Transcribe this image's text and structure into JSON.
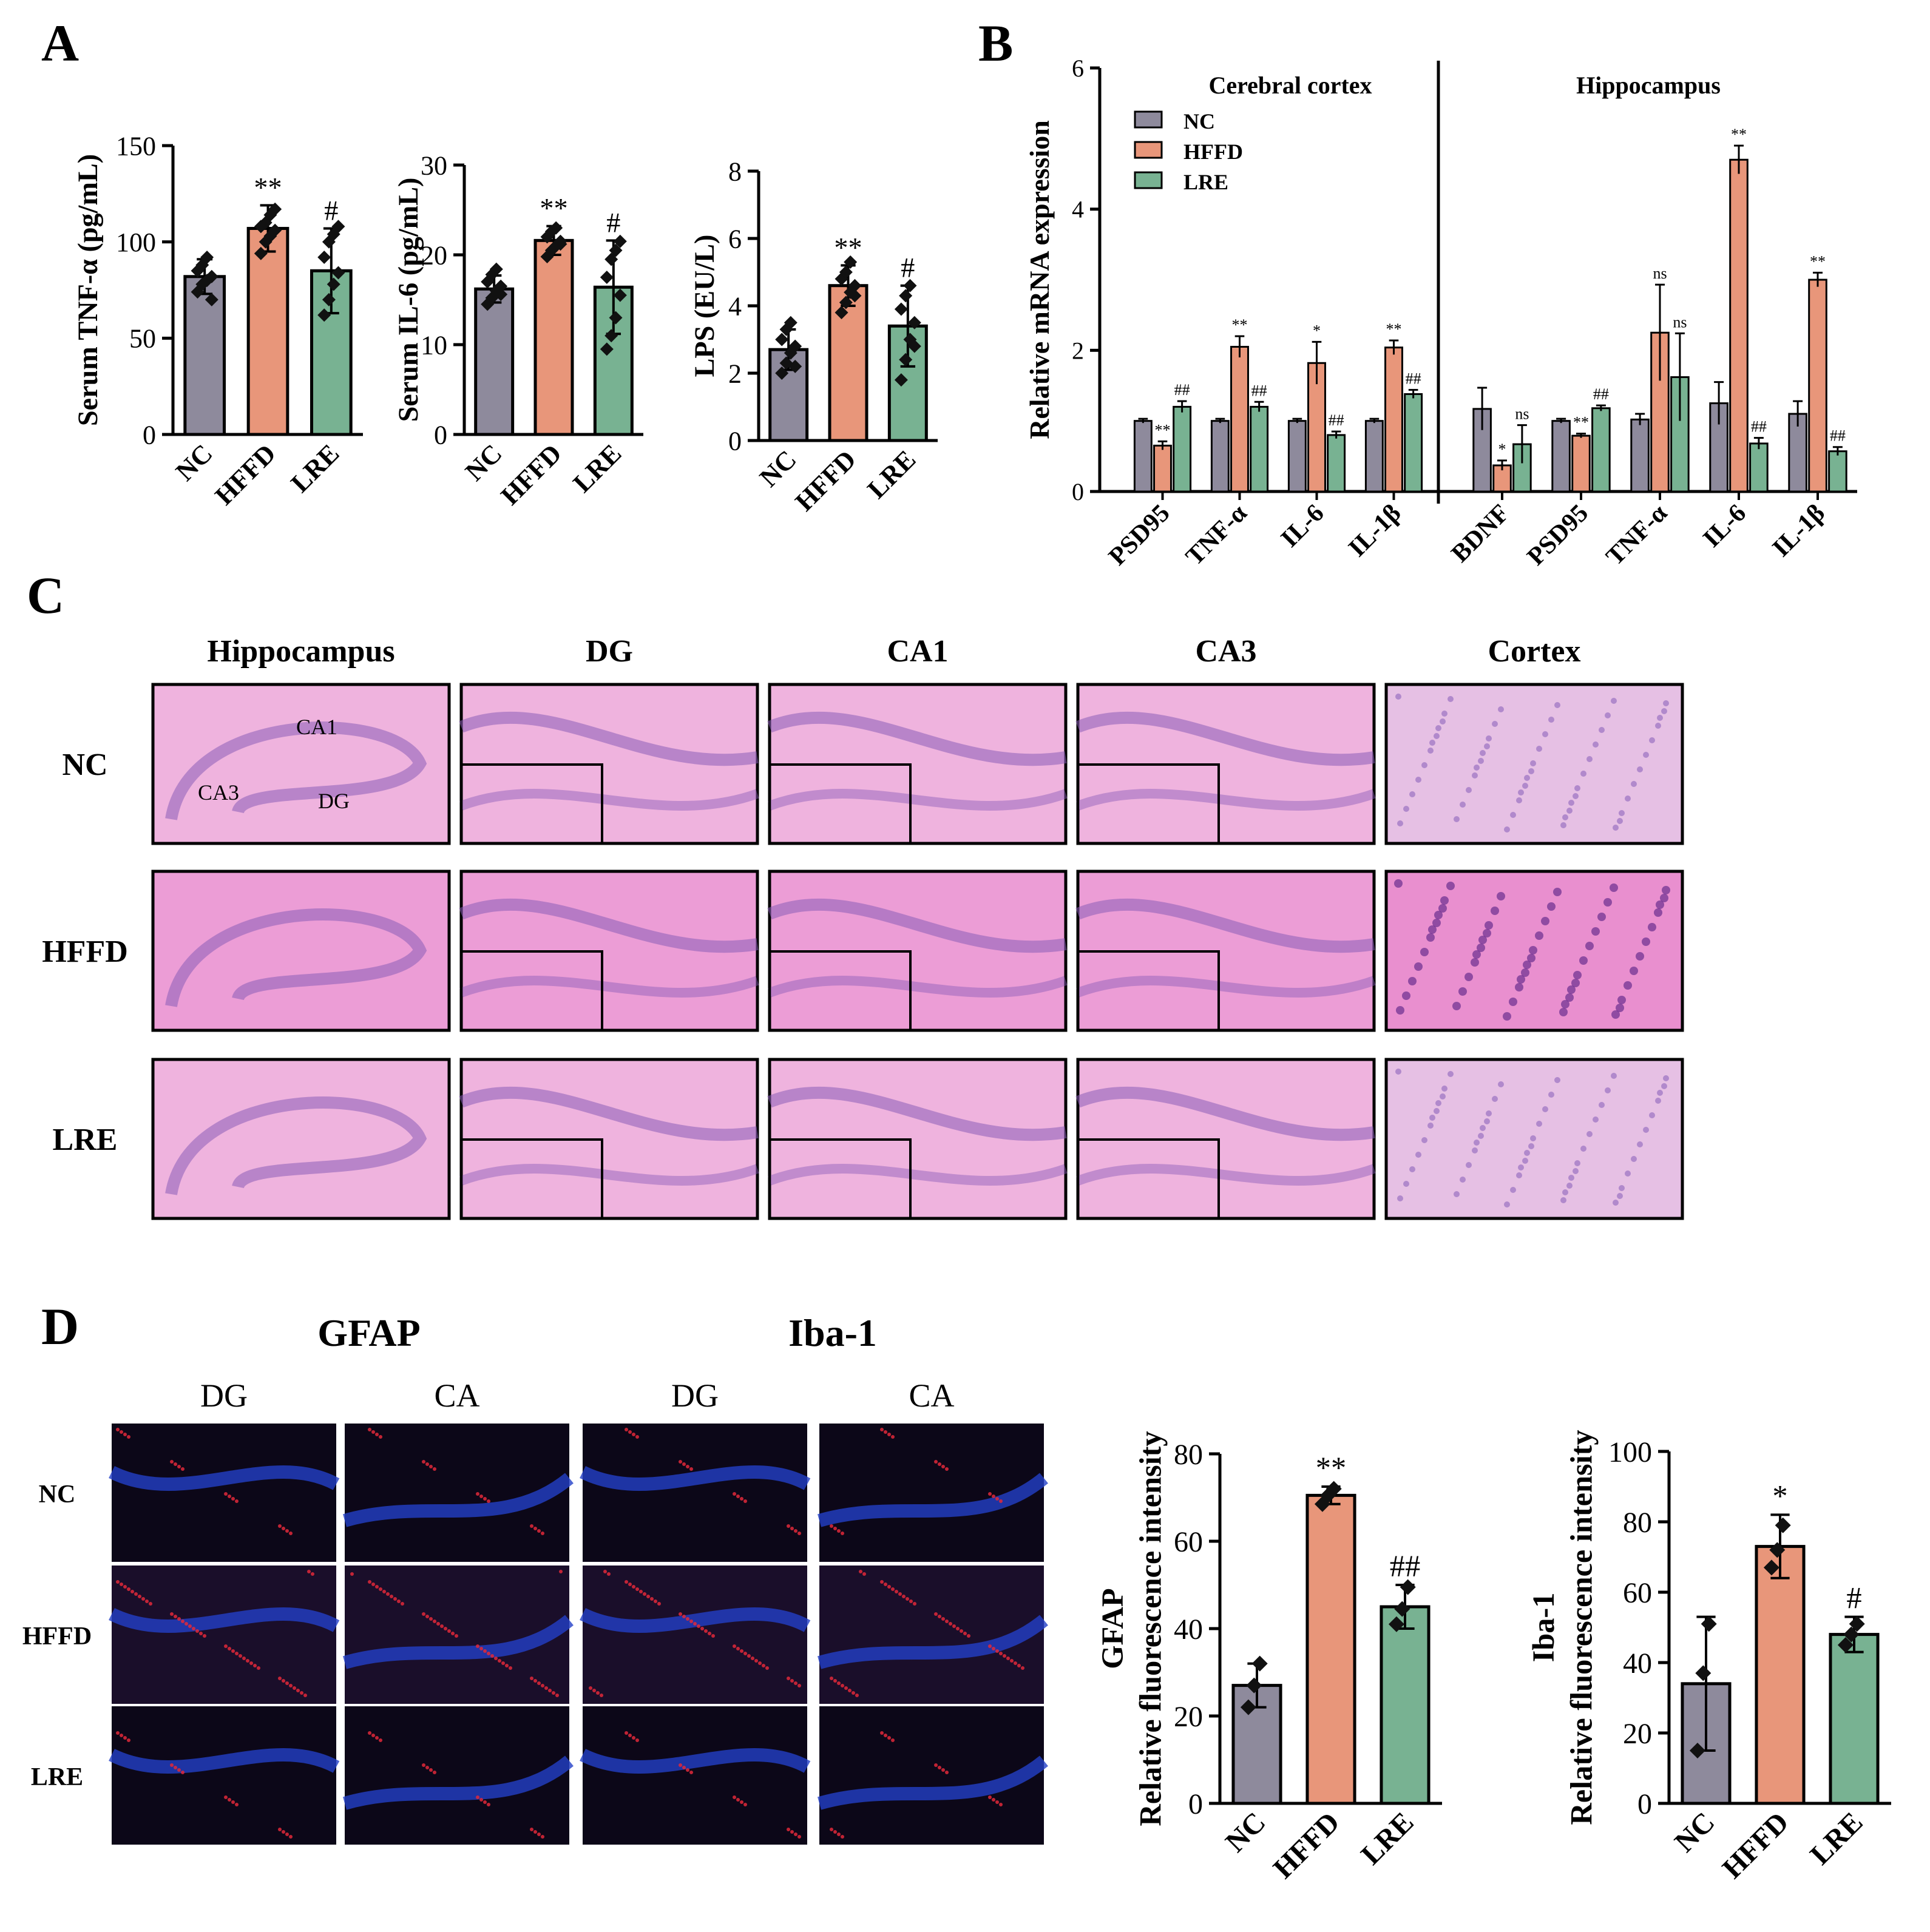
{
  "panels": {
    "A": "A",
    "B": "B",
    "C": "C",
    "D": "D"
  },
  "colors": {
    "NC": "#8e8a9c",
    "HFFD": "#e8967a",
    "LRE": "#78b292",
    "axis": "#000000",
    "dot": "#111111"
  },
  "groups": [
    "NC",
    "HFFD",
    "LRE"
  ],
  "chart_data": [
    {
      "id": "A-TNF",
      "type": "bar",
      "categories": [
        "NC",
        "HFFD",
        "LRE"
      ],
      "values": [
        82,
        107,
        85
      ],
      "errors": [
        9,
        12,
        22
      ],
      "points": [
        [
          74,
          78,
          80,
          82,
          85,
          88,
          92,
          70
        ],
        [
          94,
          100,
          103,
          106,
          108,
          110,
          114,
          117
        ],
        [
          62,
          70,
          78,
          84,
          92,
          100,
          104,
          108
        ]
      ],
      "annotations": [
        "",
        "**",
        "#"
      ],
      "ylabel": "Serum TNF-α (pg/mL)",
      "ylim": [
        0,
        150
      ],
      "yticks": [
        0,
        50,
        100,
        150
      ]
    },
    {
      "id": "A-IL6",
      "type": "bar",
      "categories": [
        "NC",
        "HFFD",
        "LRE"
      ],
      "values": [
        16.2,
        21.6,
        16.4
      ],
      "errors": [
        1.5,
        1.6,
        5.2
      ],
      "points": [
        [
          14.5,
          15.2,
          16,
          16.5,
          17,
          17.8,
          18.4,
          15.6
        ],
        [
          19.8,
          20.5,
          21,
          21.5,
          22,
          22.6,
          23,
          21.2
        ],
        [
          9.5,
          11,
          13,
          15.5,
          17.5,
          19.5,
          20.5,
          21.5
        ]
      ],
      "annotations": [
        "",
        "**",
        "#"
      ],
      "ylabel": "Serum IL-6 (pg/mL)",
      "ylim": [
        0,
        30
      ],
      "yticks": [
        0,
        10,
        20,
        30
      ]
    },
    {
      "id": "A-LPS",
      "type": "bar",
      "categories": [
        "NC",
        "HFFD",
        "LRE"
      ],
      "values": [
        2.7,
        4.6,
        3.4
      ],
      "errors": [
        0.6,
        0.6,
        1.2
      ],
      "points": [
        [
          2.0,
          2.3,
          2.6,
          2.8,
          3.0,
          3.3,
          3.5,
          2.2
        ],
        [
          3.8,
          4.1,
          4.4,
          4.6,
          4.8,
          5.0,
          5.3,
          4.3
        ],
        [
          1.8,
          2.4,
          3.0,
          3.5,
          3.9,
          4.3,
          4.6,
          2.8
        ]
      ],
      "annotations": [
        "",
        "**",
        "#"
      ],
      "ylabel": "LPS (EU/L)",
      "ylim": [
        0,
        8
      ],
      "yticks": [
        0,
        2,
        4,
        6,
        8
      ]
    },
    {
      "id": "B-mRNA",
      "type": "bar",
      "ylabel": "Relative mRNA expression",
      "ylim": [
        0,
        6
      ],
      "yticks": [
        0,
        2,
        4,
        6
      ],
      "legend": [
        "NC",
        "HFFD",
        "LRE"
      ],
      "sections": [
        {
          "title": "Cerebral cortex",
          "categories": [
            "PSD95",
            "TNF-α",
            "IL-6",
            "IL-1β"
          ],
          "series": [
            {
              "name": "NC",
              "values": [
                1.0,
                1.0,
                1.0,
                1.0
              ],
              "errors": [
                0.03,
                0.03,
                0.03,
                0.03
              ],
              "annotations": [
                "",
                "",
                "",
                ""
              ]
            },
            {
              "name": "HFFD",
              "values": [
                0.65,
                2.05,
                1.82,
                2.04
              ],
              "errors": [
                0.06,
                0.15,
                0.3,
                0.1
              ],
              "annotations": [
                "**",
                "**",
                "*",
                "**"
              ]
            },
            {
              "name": "LRE",
              "values": [
                1.2,
                1.2,
                0.8,
                1.38
              ],
              "errors": [
                0.08,
                0.07,
                0.05,
                0.06
              ],
              "annotations": [
                "##",
                "##",
                "##",
                "##"
              ]
            }
          ]
        },
        {
          "title": "Hippocampus",
          "categories": [
            "BDNF",
            "PSD95",
            "TNF-α",
            "IL-6",
            "IL-1β"
          ],
          "series": [
            {
              "name": "NC",
              "values": [
                1.17,
                1.0,
                1.02,
                1.25,
                1.1
              ],
              "errors": [
                0.3,
                0.03,
                0.08,
                0.3,
                0.18
              ],
              "annotations": [
                "",
                "",
                "",
                "",
                ""
              ]
            },
            {
              "name": "HFFD",
              "values": [
                0.37,
                0.79,
                2.25,
                4.7,
                3.0
              ],
              "errors": [
                0.07,
                0.03,
                0.68,
                0.2,
                0.1
              ],
              "annotations": [
                "*",
                "**",
                "ns",
                "**",
                "**"
              ]
            },
            {
              "name": "LRE",
              "values": [
                0.67,
                1.18,
                1.62,
                0.68,
                0.57
              ],
              "errors": [
                0.27,
                0.04,
                0.62,
                0.08,
                0.06
              ],
              "annotations": [
                "ns",
                "##",
                "ns",
                "##",
                "##"
              ]
            }
          ]
        }
      ]
    },
    {
      "id": "D-GFAP",
      "type": "bar",
      "categories": [
        "NC",
        "HFFD",
        "LRE"
      ],
      "values": [
        27,
        70.5,
        45
      ],
      "errors": [
        5,
        2,
        5
      ],
      "points": [
        [
          22,
          27,
          32
        ],
        [
          68.5,
          70.5,
          72
        ],
        [
          41,
          44.5,
          49.5
        ]
      ],
      "annotations": [
        "",
        "**",
        "##"
      ],
      "ylabel_lines": [
        "GFAP",
        "Relative fluorescence intensity"
      ],
      "ylim": [
        0,
        80
      ],
      "yticks": [
        0,
        20,
        40,
        60,
        80
      ]
    },
    {
      "id": "D-Iba1",
      "type": "bar",
      "categories": [
        "NC",
        "HFFD",
        "LRE"
      ],
      "values": [
        34,
        73,
        48
      ],
      "errors": [
        19,
        9,
        5
      ],
      "points": [
        [
          15,
          37,
          51
        ],
        [
          67,
          72,
          79
        ],
        [
          45,
          48,
          51
        ]
      ],
      "annotations": [
        "",
        "*",
        "#"
      ],
      "ylabel_lines": [
        "Iba-1",
        "Relative fluorescence intensity"
      ],
      "ylim": [
        0,
        100
      ],
      "yticks": [
        0,
        20,
        40,
        60,
        80,
        100
      ]
    }
  ],
  "histology": {
    "columns": [
      "Hippocampus",
      "DG",
      "CA1",
      "CA3",
      "Cortex"
    ],
    "rows": [
      "NC",
      "HFFD",
      "LRE"
    ],
    "region_labels": {
      "ca1": "CA1",
      "ca3": "CA3",
      "dg": "DG"
    }
  },
  "fluorescence": {
    "markers": [
      "GFAP",
      "Iba-1"
    ],
    "columns": [
      "DG",
      "CA",
      "DG",
      "CA"
    ],
    "rows": [
      "NC",
      "HFFD",
      "LRE"
    ]
  }
}
